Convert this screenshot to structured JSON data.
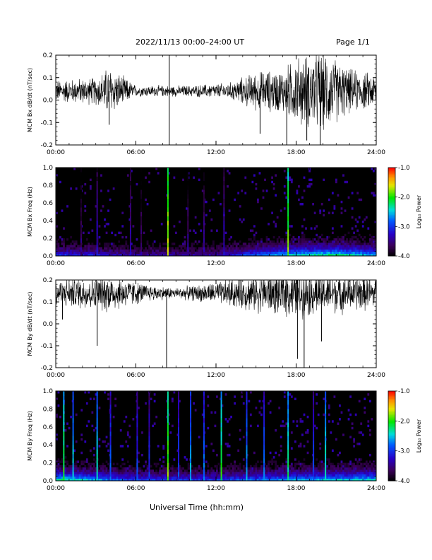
{
  "header": {
    "title": "2022/11/13  00:00–24:00 UT",
    "page": "Page 1/1"
  },
  "footer": {
    "xlabel": "Universal Time (hh:mm)"
  },
  "colorbar": {
    "label": "Log₁₀ Power",
    "ticks": [
      "-1.0",
      "-2.0",
      "-3.0",
      "-4.0"
    ],
    "range": [
      -4.0,
      -1.0
    ]
  },
  "chart_data": [
    {
      "type": "line",
      "ylabel": "MCM Bx dB/dt (nT/sec)",
      "xlim": [
        0,
        24
      ],
      "ylim": [
        -0.2,
        0.2
      ],
      "yticks": [
        "0.2",
        "0.1",
        "0.0",
        "-0.1",
        "-0.2"
      ],
      "xticks": [
        "00:00",
        "06:00",
        "12:00",
        "18:00",
        "24:00"
      ],
      "baseline": 0.04,
      "noise_envelope": [
        {
          "x": 0,
          "amp": 0.04
        },
        {
          "x": 3,
          "amp": 0.05
        },
        {
          "x": 4,
          "amp": 0.09
        },
        {
          "x": 6,
          "amp": 0.02
        },
        {
          "x": 8,
          "amp": 0.02
        },
        {
          "x": 10,
          "amp": 0.02
        },
        {
          "x": 13,
          "amp": 0.03
        },
        {
          "x": 15,
          "amp": 0.07
        },
        {
          "x": 17,
          "amp": 0.08
        },
        {
          "x": 18,
          "amp": 0.12
        },
        {
          "x": 20,
          "amp": 0.15
        },
        {
          "x": 22,
          "amp": 0.08
        },
        {
          "x": 24,
          "amp": 0.06
        }
      ],
      "spikes": [
        {
          "x": 8.5,
          "y": -0.2
        },
        {
          "x": 8.5,
          "y": 0.2
        },
        {
          "x": 15.3,
          "y": -0.15
        },
        {
          "x": 17.3,
          "y": -0.2
        },
        {
          "x": 18.8,
          "y": -0.18
        },
        {
          "x": 19.8,
          "y": -0.2
        },
        {
          "x": 4.0,
          "y": -0.11
        }
      ]
    },
    {
      "type": "heatmap",
      "ylabel": "MCM Bx Freq (Hz)",
      "xlim": [
        0,
        24
      ],
      "ylim": [
        0.0,
        1.0
      ],
      "yticks": [
        "1.0",
        "0.8",
        "0.6",
        "0.4",
        "0.2",
        "0.0"
      ],
      "xticks": [
        "00:00",
        "06:00",
        "12:00",
        "18:00",
        "24:00"
      ],
      "vertical_streaks": [
        {
          "x": 8.4,
          "power": -1.6
        },
        {
          "x": 17.4,
          "power": -1.8
        },
        {
          "x": 3.1,
          "power": -3.2
        },
        {
          "x": 5.6,
          "power": -3.3
        },
        {
          "x": 12.6,
          "power": -3.2
        },
        {
          "x": 11.1,
          "power": -3.4
        },
        {
          "x": 1.9,
          "power": -3.5
        },
        {
          "x": 6.4,
          "power": -3.5
        },
        {
          "x": 9.9,
          "power": -3.4
        }
      ],
      "low_freq_activity": [
        {
          "x": 0,
          "level": 0.6
        },
        {
          "x": 6,
          "level": 0.4
        },
        {
          "x": 12,
          "level": 0.4
        },
        {
          "x": 15,
          "level": 0.7
        },
        {
          "x": 18,
          "level": 0.9
        },
        {
          "x": 21,
          "level": 1.0
        },
        {
          "x": 24,
          "level": 0.8
        }
      ]
    },
    {
      "type": "line",
      "ylabel": "MCM By dB/dt (nT/sec)",
      "xlim": [
        0,
        24
      ],
      "ylim": [
        -0.2,
        0.2
      ],
      "yticks": [
        "0.2",
        "0.1",
        "0.0",
        "-0.1",
        "-0.2"
      ],
      "xticks": [
        "00:00",
        "06:00",
        "12:00",
        "18:00",
        "24:00"
      ],
      "baseline": 0.14,
      "noise_envelope": [
        {
          "x": 0,
          "amp": 0.05
        },
        {
          "x": 2,
          "amp": 0.06
        },
        {
          "x": 4,
          "amp": 0.07
        },
        {
          "x": 7,
          "amp": 0.03
        },
        {
          "x": 9,
          "amp": 0.02
        },
        {
          "x": 12,
          "amp": 0.04
        },
        {
          "x": 15,
          "amp": 0.07
        },
        {
          "x": 18,
          "amp": 0.09
        },
        {
          "x": 20,
          "amp": 0.08
        },
        {
          "x": 24,
          "amp": 0.06
        }
      ],
      "spikes": [
        {
          "x": 8.3,
          "y": -0.2
        },
        {
          "x": 3.1,
          "y": -0.1
        },
        {
          "x": 0.5,
          "y": 0.02
        },
        {
          "x": 18.6,
          "y": -0.2
        },
        {
          "x": 19.9,
          "y": -0.08
        },
        {
          "x": 18.1,
          "y": -0.16
        }
      ]
    },
    {
      "type": "heatmap",
      "ylabel": "MCM By Freq (Hz)",
      "xlim": [
        0,
        24
      ],
      "ylim": [
        0.0,
        1.0
      ],
      "yticks": [
        "1.0",
        "0.8",
        "0.6",
        "0.4",
        "0.2",
        "0.0"
      ],
      "xticks": [
        "00:00",
        "06:00",
        "12:00",
        "18:00",
        "24:00"
      ],
      "vertical_streaks": [
        {
          "x": 0.6,
          "power": -2.0
        },
        {
          "x": 1.3,
          "power": -2.4
        },
        {
          "x": 3.1,
          "power": -2.3
        },
        {
          "x": 4.1,
          "power": -2.8
        },
        {
          "x": 6.1,
          "power": -2.9
        },
        {
          "x": 7.0,
          "power": -3.0
        },
        {
          "x": 8.4,
          "power": -1.8
        },
        {
          "x": 9.2,
          "power": -2.9
        },
        {
          "x": 10.1,
          "power": -2.5
        },
        {
          "x": 11.1,
          "power": -2.7
        },
        {
          "x": 12.4,
          "power": -2.0
        },
        {
          "x": 14.3,
          "power": -2.6
        },
        {
          "x": 15.6,
          "power": -2.7
        },
        {
          "x": 17.4,
          "power": -2.2
        },
        {
          "x": 19.3,
          "power": -2.9
        },
        {
          "x": 20.2,
          "power": -2.3
        }
      ],
      "low_freq_activity": [
        {
          "x": 0,
          "level": 1.0
        },
        {
          "x": 3,
          "level": 0.8
        },
        {
          "x": 6,
          "level": 0.6
        },
        {
          "x": 12,
          "level": 0.6
        },
        {
          "x": 18,
          "level": 0.8
        },
        {
          "x": 24,
          "level": 0.9
        }
      ]
    }
  ]
}
